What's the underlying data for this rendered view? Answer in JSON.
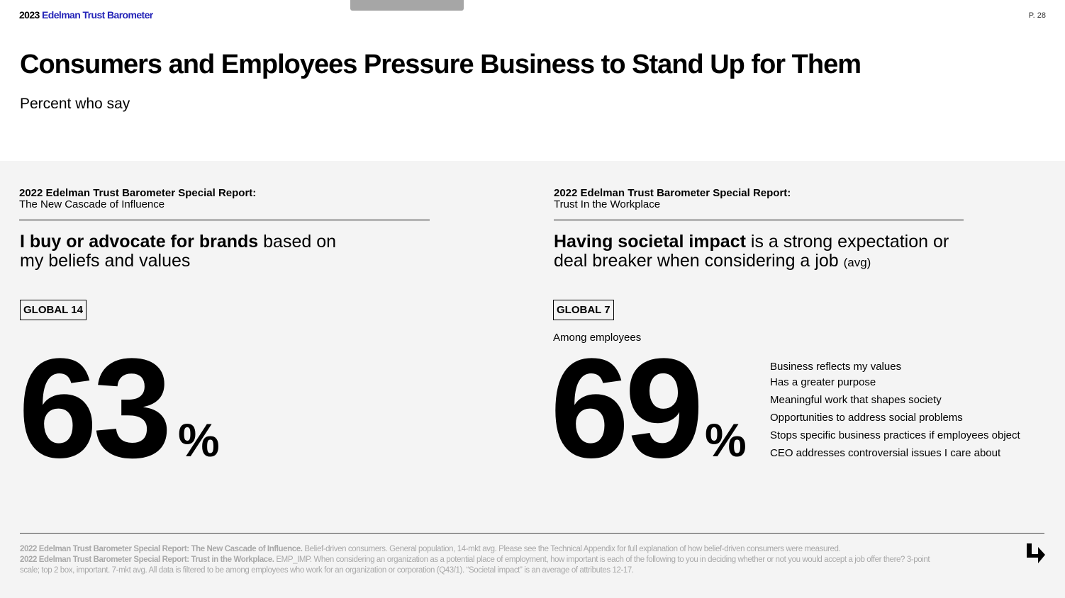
{
  "header": {
    "brand_year": "2023",
    "brand_name": "Edelman Trust Barometer",
    "page_number": "P. 28"
  },
  "title": "Consumers and Employees Pressure Business to Stand Up for Them",
  "subtitle": "Percent who say",
  "left": {
    "report_title": "2022 Edelman Trust Barometer Special Report:",
    "report_subtitle": "The New Cascade of Influence",
    "headline_bold": "I buy or advocate for brands",
    "headline_rest1": " based on",
    "headline_rest2": "my beliefs and values",
    "badge": "GLOBAL 14",
    "value": "63",
    "unit": "%"
  },
  "right": {
    "report_title": "2022 Edelman Trust Barometer Special Report:",
    "report_subtitle": "Trust In the Workplace",
    "headline_bold": "Having societal impact",
    "headline_rest1": " is a strong expectation or",
    "headline_rest2": "deal breaker when considering a job ",
    "headline_note": "(avg)",
    "badge": "GLOBAL 7",
    "among": "Among employees",
    "value": "69",
    "unit": "%",
    "attributes": [
      "Business reflects my values",
      "Has a greater purpose",
      "Meaningful work that shapes society",
      "Opportunities to address social problems",
      "Stops specific business practices if employees object",
      "CEO addresses controversial issues I care about"
    ]
  },
  "footnote": {
    "src1_bold": "2022 Edelman Trust Barometer Special Report: The New Cascade of Influence.",
    "src1_text": " Belief-driven consumers. General population, 14-mkt avg. Please see the Technical Appendix for full explanation of how belief-driven consumers were measured.",
    "src2_bold": "2022 Edelman Trust Barometer Special Report: Trust in the Workplace.",
    "src2_text": " EMP_IMP. When considering an organization as a potential place of employment, how important is each of the following to you in deciding whether or not you would accept a job offer there? 3-point scale; top 2 box, important. 7-mkt avg. All data is filtered to be among employees who work for an organization or corporation (Q43/1). “Societal impact” is an average of attributes 12-17."
  },
  "colors": {
    "brand_blue": "#2424b8",
    "panel_bg": "#f4f4f4",
    "footnote_gray": "#a8a8a8"
  },
  "icons": {
    "next": "arrow-down-right-icon"
  }
}
